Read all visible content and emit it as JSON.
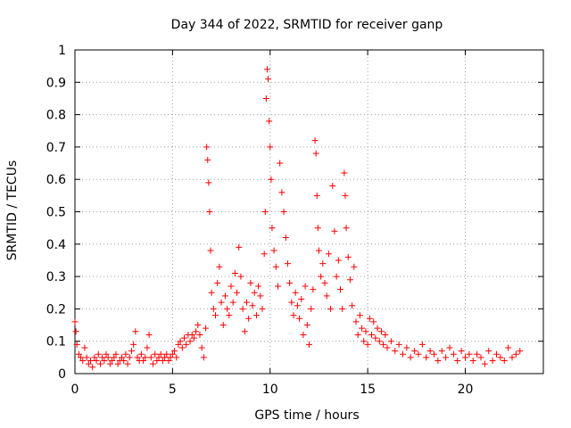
{
  "chart_data": {
    "type": "scatter",
    "title": "Day 344 of 2022, SRMTID for receiver ganp",
    "xlabel": "GPS time / hours",
    "ylabel": "SRMTID / TECUs",
    "xlim": [
      0,
      24
    ],
    "ylim": [
      0,
      1
    ],
    "xticks": [
      0,
      5,
      10,
      15,
      20
    ],
    "xtick_labels": [
      "0",
      "5",
      "10",
      "15",
      "20"
    ],
    "yticks": [
      0,
      0.1,
      0.2,
      0.3,
      0.4,
      0.5,
      0.6,
      0.7,
      0.8,
      0.9,
      1
    ],
    "ytick_labels": [
      "0",
      "0.1",
      "0.2",
      "0.3",
      "0.4",
      "0.5",
      "0.6",
      "0.7",
      "0.8",
      "0.9",
      "1"
    ],
    "grid": true,
    "marker": "+",
    "color": "#ff0000",
    "series": [
      {
        "name": "SRMTID",
        "points": [
          [
            0.0,
            0.16
          ],
          [
            0.05,
            0.13
          ],
          [
            0.1,
            0.09
          ],
          [
            0.2,
            0.06
          ],
          [
            0.3,
            0.05
          ],
          [
            0.4,
            0.04
          ],
          [
            0.5,
            0.08
          ],
          [
            0.6,
            0.05
          ],
          [
            0.7,
            0.03
          ],
          [
            0.8,
            0.04
          ],
          [
            0.9,
            0.02
          ],
          [
            1.0,
            0.05
          ],
          [
            1.1,
            0.04
          ],
          [
            1.2,
            0.06
          ],
          [
            1.3,
            0.03
          ],
          [
            1.4,
            0.05
          ],
          [
            1.5,
            0.04
          ],
          [
            1.6,
            0.06
          ],
          [
            1.7,
            0.05
          ],
          [
            1.8,
            0.03
          ],
          [
            1.9,
            0.04
          ],
          [
            2.0,
            0.05
          ],
          [
            2.1,
            0.06
          ],
          [
            2.2,
            0.03
          ],
          [
            2.3,
            0.04
          ],
          [
            2.4,
            0.05
          ],
          [
            2.5,
            0.04
          ],
          [
            2.6,
            0.06
          ],
          [
            2.7,
            0.03
          ],
          [
            2.8,
            0.05
          ],
          [
            2.9,
            0.07
          ],
          [
            3.0,
            0.09
          ],
          [
            3.1,
            0.13
          ],
          [
            3.2,
            0.05
          ],
          [
            3.3,
            0.04
          ],
          [
            3.4,
            0.06
          ],
          [
            3.5,
            0.04
          ],
          [
            3.6,
            0.05
          ],
          [
            3.7,
            0.08
          ],
          [
            3.8,
            0.12
          ],
          [
            3.9,
            0.05
          ],
          [
            4.0,
            0.03
          ],
          [
            4.1,
            0.06
          ],
          [
            4.2,
            0.04
          ],
          [
            4.3,
            0.05
          ],
          [
            4.4,
            0.06
          ],
          [
            4.5,
            0.04
          ],
          [
            4.6,
            0.05
          ],
          [
            4.7,
            0.06
          ],
          [
            4.8,
            0.04
          ],
          [
            4.9,
            0.05
          ],
          [
            5.0,
            0.06
          ],
          [
            5.1,
            0.07
          ],
          [
            5.2,
            0.05
          ],
          [
            5.3,
            0.09
          ],
          [
            5.4,
            0.1
          ],
          [
            5.5,
            0.08
          ],
          [
            5.6,
            0.11
          ],
          [
            5.7,
            0.09
          ],
          [
            5.8,
            0.12
          ],
          [
            5.9,
            0.1
          ],
          [
            6.0,
            0.12
          ],
          [
            6.1,
            0.11
          ],
          [
            6.2,
            0.13
          ],
          [
            6.3,
            0.15
          ],
          [
            6.4,
            0.12
          ],
          [
            6.5,
            0.08
          ],
          [
            6.6,
            0.05
          ],
          [
            6.7,
            0.14
          ],
          [
            6.75,
            0.7
          ],
          [
            6.8,
            0.66
          ],
          [
            6.85,
            0.59
          ],
          [
            6.9,
            0.5
          ],
          [
            6.95,
            0.38
          ],
          [
            7.0,
            0.25
          ],
          [
            7.1,
            0.2
          ],
          [
            7.2,
            0.18
          ],
          [
            7.3,
            0.28
          ],
          [
            7.4,
            0.33
          ],
          [
            7.5,
            0.22
          ],
          [
            7.6,
            0.15
          ],
          [
            7.7,
            0.24
          ],
          [
            7.8,
            0.2
          ],
          [
            7.9,
            0.18
          ],
          [
            8.0,
            0.27
          ],
          [
            8.1,
            0.22
          ],
          [
            8.2,
            0.31
          ],
          [
            8.3,
            0.25
          ],
          [
            8.4,
            0.39
          ],
          [
            8.5,
            0.3
          ],
          [
            8.6,
            0.2
          ],
          [
            8.7,
            0.13
          ],
          [
            8.8,
            0.22
          ],
          [
            8.9,
            0.17
          ],
          [
            9.0,
            0.28
          ],
          [
            9.1,
            0.21
          ],
          [
            9.2,
            0.25
          ],
          [
            9.3,
            0.18
          ],
          [
            9.4,
            0.27
          ],
          [
            9.5,
            0.24
          ],
          [
            9.6,
            0.2
          ],
          [
            9.7,
            0.37
          ],
          [
            9.75,
            0.5
          ],
          [
            9.8,
            0.85
          ],
          [
            9.85,
            0.94
          ],
          [
            9.9,
            0.91
          ],
          [
            9.95,
            0.78
          ],
          [
            10.0,
            0.7
          ],
          [
            10.05,
            0.6
          ],
          [
            10.1,
            0.45
          ],
          [
            10.2,
            0.38
          ],
          [
            10.3,
            0.33
          ],
          [
            10.4,
            0.27
          ],
          [
            10.5,
            0.65
          ],
          [
            10.6,
            0.56
          ],
          [
            10.7,
            0.5
          ],
          [
            10.8,
            0.42
          ],
          [
            10.9,
            0.34
          ],
          [
            11.0,
            0.28
          ],
          [
            11.1,
            0.22
          ],
          [
            11.2,
            0.18
          ],
          [
            11.3,
            0.25
          ],
          [
            11.4,
            0.21
          ],
          [
            11.5,
            0.17
          ],
          [
            11.6,
            0.23
          ],
          [
            11.7,
            0.12
          ],
          [
            11.8,
            0.27
          ],
          [
            11.9,
            0.15
          ],
          [
            12.0,
            0.09
          ],
          [
            12.1,
            0.2
          ],
          [
            12.2,
            0.26
          ],
          [
            12.3,
            0.72
          ],
          [
            12.35,
            0.68
          ],
          [
            12.4,
            0.55
          ],
          [
            12.45,
            0.45
          ],
          [
            12.5,
            0.38
          ],
          [
            12.6,
            0.3
          ],
          [
            12.7,
            0.34
          ],
          [
            12.8,
            0.28
          ],
          [
            12.9,
            0.24
          ],
          [
            13.0,
            0.37
          ],
          [
            13.1,
            0.2
          ],
          [
            13.2,
            0.58
          ],
          [
            13.3,
            0.44
          ],
          [
            13.4,
            0.3
          ],
          [
            13.5,
            0.35
          ],
          [
            13.6,
            0.26
          ],
          [
            13.7,
            0.2
          ],
          [
            13.8,
            0.62
          ],
          [
            13.85,
            0.55
          ],
          [
            13.9,
            0.45
          ],
          [
            14.0,
            0.36
          ],
          [
            14.1,
            0.29
          ],
          [
            14.2,
            0.21
          ],
          [
            14.3,
            0.33
          ],
          [
            14.4,
            0.16
          ],
          [
            14.5,
            0.12
          ],
          [
            14.6,
            0.18
          ],
          [
            14.7,
            0.14
          ],
          [
            14.8,
            0.1
          ],
          [
            14.9,
            0.13
          ],
          [
            15.0,
            0.09
          ],
          [
            15.1,
            0.17
          ],
          [
            15.2,
            0.12
          ],
          [
            15.3,
            0.16
          ],
          [
            15.4,
            0.11
          ],
          [
            15.5,
            0.14
          ],
          [
            15.6,
            0.1
          ],
          [
            15.7,
            0.13
          ],
          [
            15.8,
            0.09
          ],
          [
            15.9,
            0.12
          ],
          [
            16.0,
            0.08
          ],
          [
            16.2,
            0.1
          ],
          [
            16.4,
            0.07
          ],
          [
            16.6,
            0.09
          ],
          [
            16.8,
            0.06
          ],
          [
            17.0,
            0.08
          ],
          [
            17.2,
            0.05
          ],
          [
            17.4,
            0.07
          ],
          [
            17.6,
            0.06
          ],
          [
            17.8,
            0.09
          ],
          [
            18.0,
            0.05
          ],
          [
            18.2,
            0.07
          ],
          [
            18.4,
            0.06
          ],
          [
            18.6,
            0.04
          ],
          [
            18.8,
            0.07
          ],
          [
            19.0,
            0.05
          ],
          [
            19.2,
            0.08
          ],
          [
            19.4,
            0.06
          ],
          [
            19.6,
            0.04
          ],
          [
            19.8,
            0.07
          ],
          [
            20.0,
            0.05
          ],
          [
            20.2,
            0.06
          ],
          [
            20.4,
            0.04
          ],
          [
            20.6,
            0.06
          ],
          [
            20.8,
            0.05
          ],
          [
            21.0,
            0.03
          ],
          [
            21.2,
            0.07
          ],
          [
            21.4,
            0.04
          ],
          [
            21.6,
            0.06
          ],
          [
            21.8,
            0.05
          ],
          [
            22.0,
            0.04
          ],
          [
            22.2,
            0.08
          ],
          [
            22.4,
            0.05
          ],
          [
            22.6,
            0.06
          ],
          [
            22.8,
            0.07
          ]
        ]
      }
    ]
  }
}
